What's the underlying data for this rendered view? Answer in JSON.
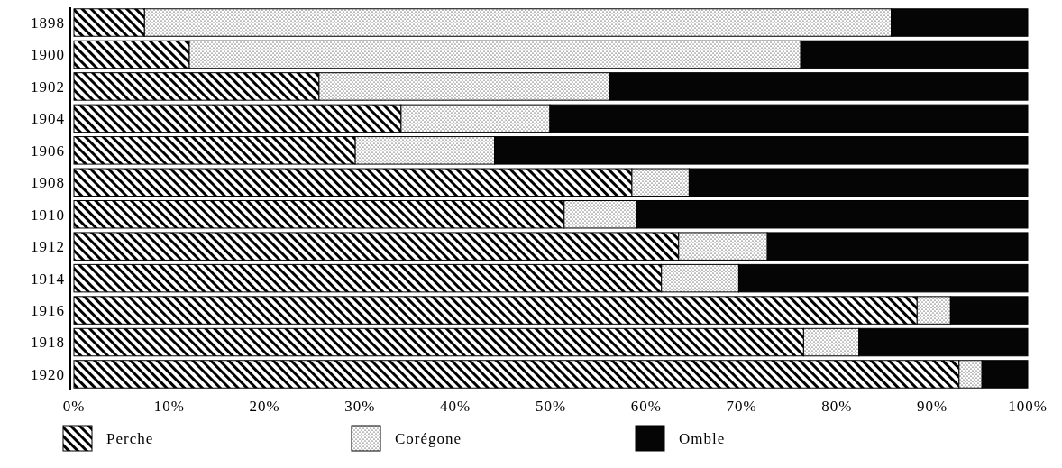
{
  "chart_data": {
    "type": "bar",
    "orientation": "horizontal",
    "stacked": true,
    "categories": [
      "1898",
      "1900",
      "1902",
      "1904",
      "1906",
      "1908",
      "1910",
      "1912",
      "1914",
      "1916",
      "1918",
      "1920"
    ],
    "series": [
      {
        "name": "Perche",
        "color": "#000000",
        "values": [
          7.4,
          12.1,
          25.7,
          34.3,
          29.5,
          58.5,
          51.4,
          63.4,
          61.6,
          88.4,
          76.5,
          92.8
        ]
      },
      {
        "name": "Corégone",
        "color": "#000000",
        "values": [
          78.3,
          64.1,
          30.4,
          15.6,
          14.6,
          6.0,
          7.6,
          9.3,
          8.1,
          3.5,
          5.8,
          2.4
        ]
      },
      {
        "name": "Omble",
        "color": "#050505",
        "values": [
          14.3,
          23.8,
          43.9,
          50.1,
          55.9,
          35.5,
          41.0,
          27.3,
          30.3,
          8.1,
          17.7,
          4.8
        ]
      }
    ],
    "xlim": [
      0,
      100
    ],
    "xticks": [
      {
        "value": 0,
        "label": "0%"
      },
      {
        "value": 10,
        "label": "10%"
      },
      {
        "value": 20,
        "label": "20%"
      },
      {
        "value": 30,
        "label": "30%"
      },
      {
        "value": 40,
        "label": "40%"
      },
      {
        "value": 50,
        "label": "50%"
      },
      {
        "value": 60,
        "label": "60%"
      },
      {
        "value": 70,
        "label": "70%"
      },
      {
        "value": 80,
        "label": "80%"
      },
      {
        "value": 90,
        "label": "90%"
      },
      {
        "value": 100,
        "label": "100%"
      }
    ],
    "legend": "bottom"
  }
}
